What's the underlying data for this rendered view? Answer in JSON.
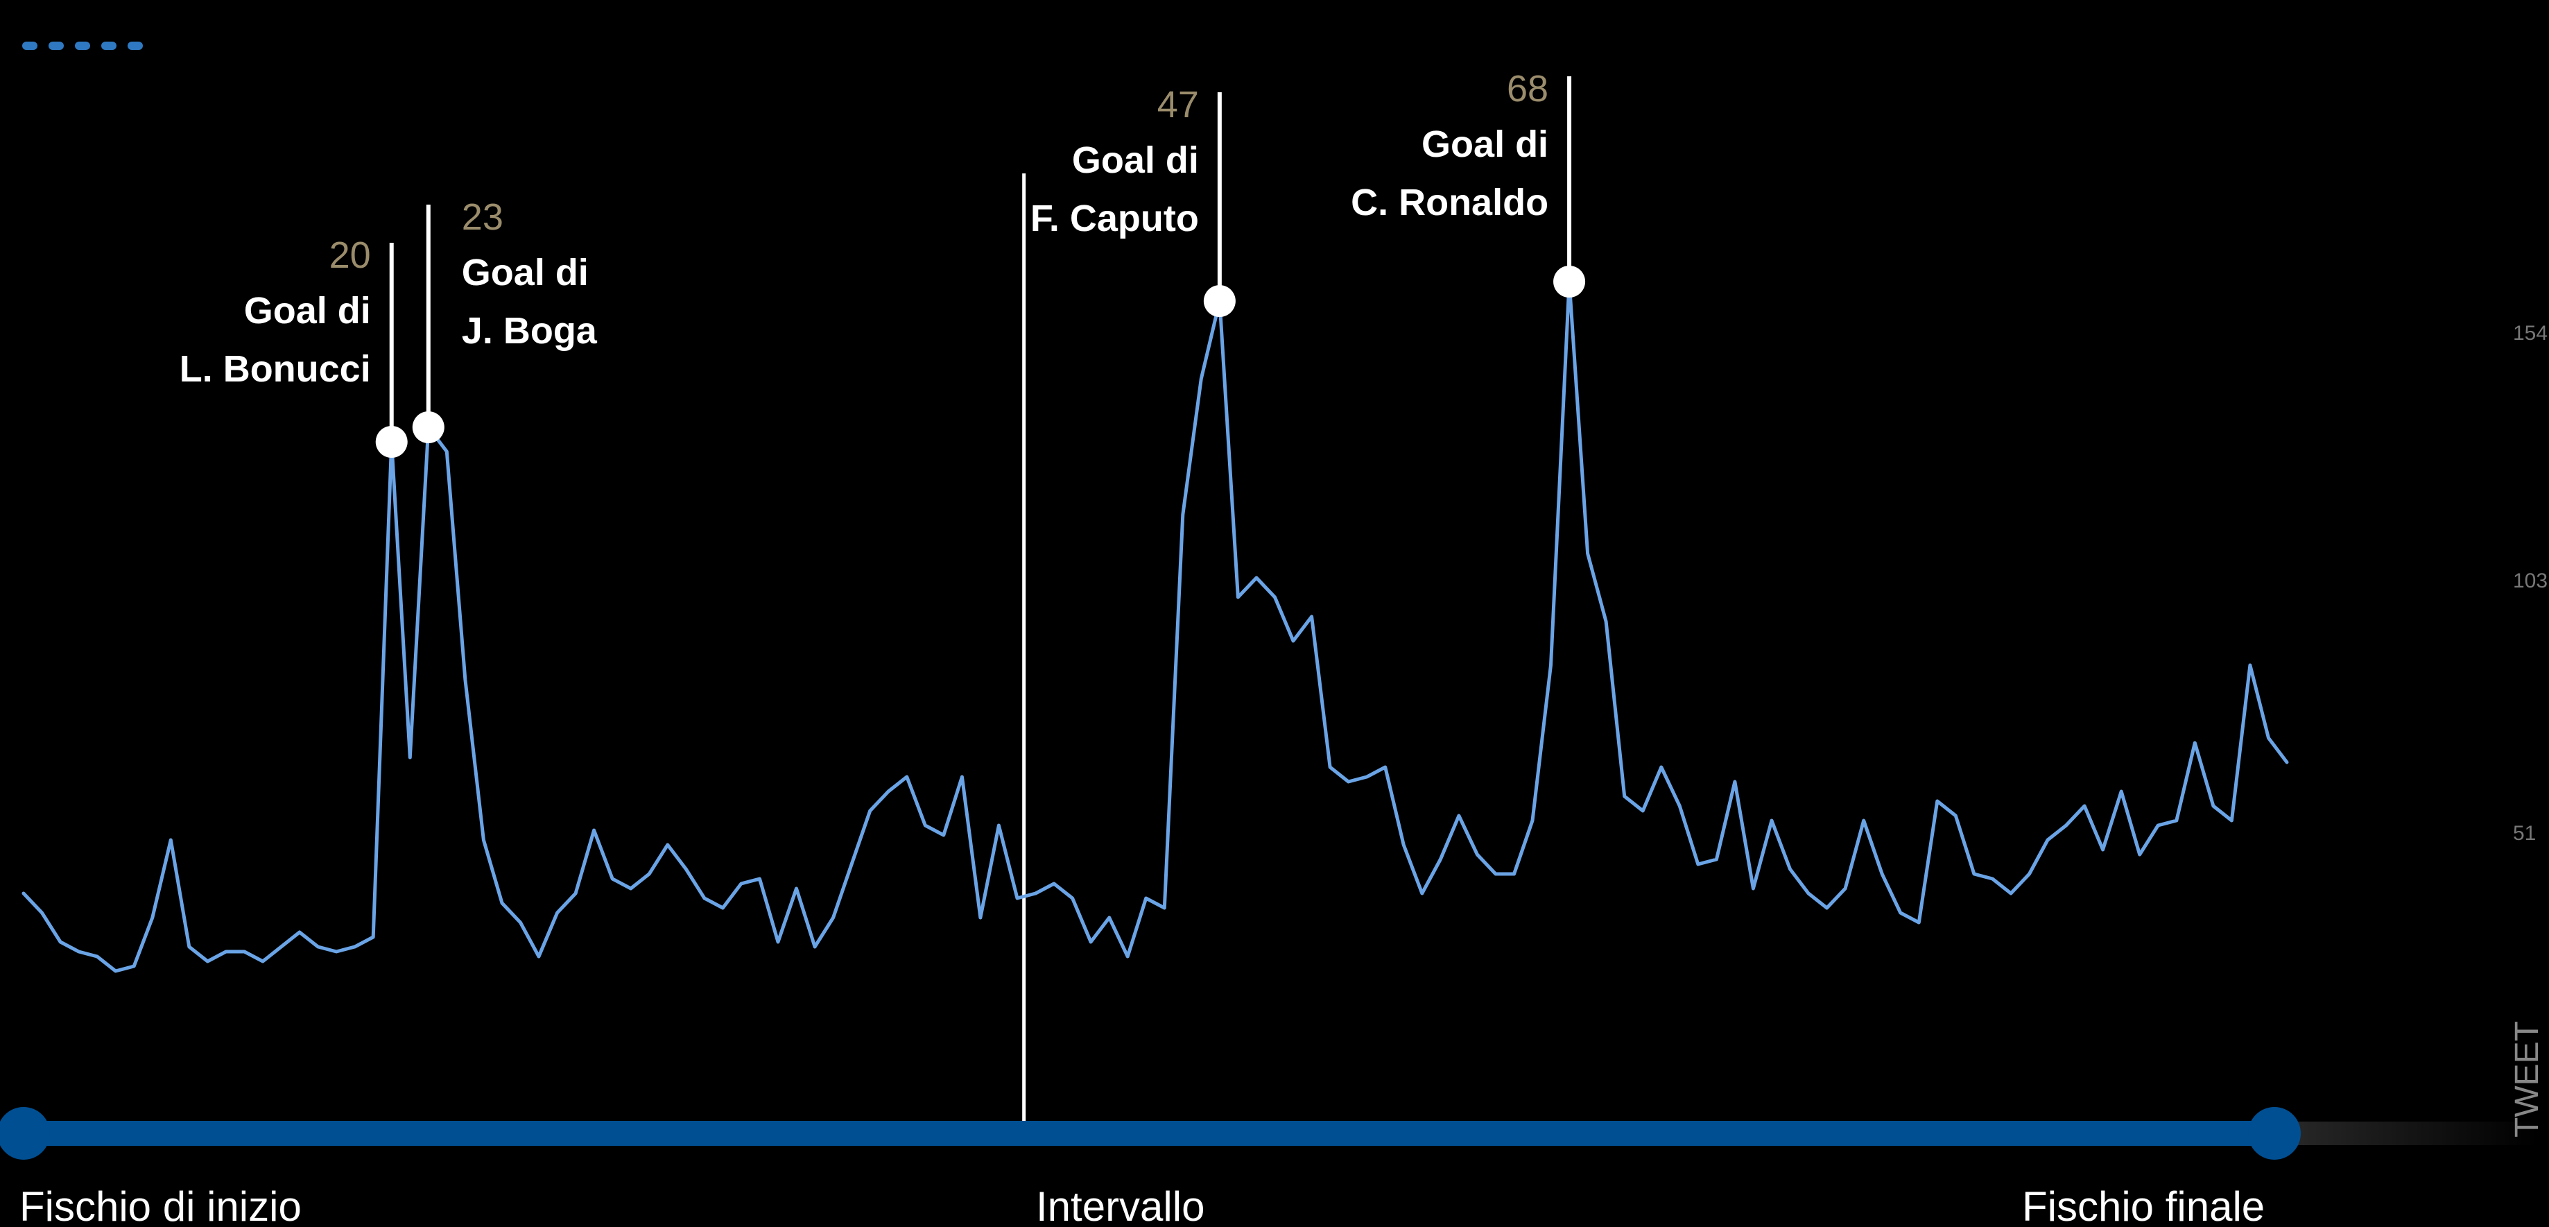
{
  "chart_data": {
    "type": "line",
    "x_start_label": "Fischio di inizio",
    "x_mid_label": "Intervallo",
    "x_end_label": "Fischio finale",
    "ylabel": "TWEET",
    "y_ticks": [
      154,
      103,
      51
    ],
    "ylim": [
      0,
      168
    ],
    "series_color": "#6aa4e6",
    "timeline_color": "#004f92",
    "values": [
      38,
      34,
      28,
      26,
      25,
      22,
      23,
      33,
      49,
      27,
      24,
      26,
      26,
      24,
      27,
      30,
      27,
      26,
      27,
      29,
      131,
      66,
      134,
      129,
      82,
      49,
      36,
      32,
      25,
      34,
      38,
      51,
      41,
      39,
      42,
      48,
      43,
      37,
      35,
      40,
      41,
      28,
      39,
      27,
      33,
      44,
      55,
      59,
      62,
      52,
      50,
      62,
      33,
      52,
      37,
      38,
      40,
      37,
      28,
      33,
      25,
      37,
      35,
      116,
      144,
      160,
      99,
      103,
      99,
      90,
      95,
      64,
      61,
      62,
      64,
      48,
      38,
      45,
      54,
      46,
      42,
      42,
      53,
      85,
      164,
      108,
      94,
      58,
      55,
      64,
      56,
      44,
      45,
      61,
      39,
      53,
      43,
      38,
      35,
      39,
      53,
      42,
      34,
      32,
      57,
      54,
      42,
      41,
      38,
      42,
      49,
      52,
      56,
      47,
      59,
      46,
      52,
      53,
      69,
      56,
      53,
      85,
      70,
      65
    ],
    "annotations": [
      {
        "minute": "20",
        "line1": "Goal di",
        "line2": "L. Bonucci"
      },
      {
        "minute": "23",
        "line1": "Goal di",
        "line2": "J. Boga"
      },
      {
        "minute": "47",
        "line1": "Goal di",
        "line2": "F. Caputo"
      },
      {
        "minute": "68",
        "line1": "Goal di",
        "line2": "C. Ronaldo"
      }
    ],
    "grid": true
  }
}
